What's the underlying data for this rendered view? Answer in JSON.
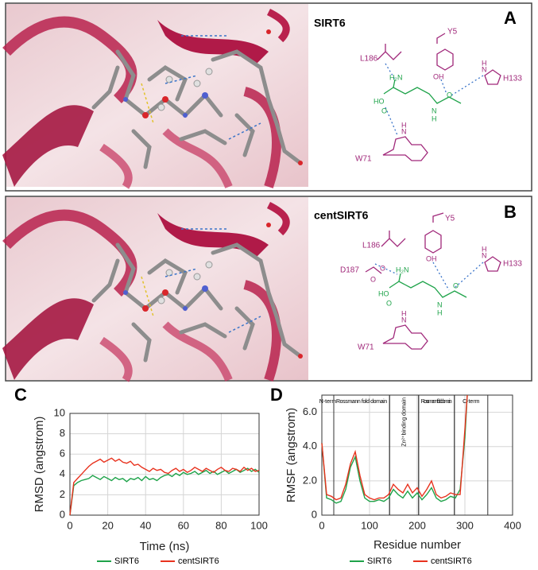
{
  "panels": {
    "a": {
      "label": "A",
      "title": "SIRT6",
      "residues": [
        "L186",
        "Y5",
        "H133",
        "W71"
      ],
      "atoms": [
        "HO",
        "H₂N",
        "O",
        "OH",
        "O",
        "N",
        "H",
        "N",
        "H",
        "N",
        "H"
      ]
    },
    "b": {
      "label": "B",
      "title": "centSIRT6",
      "residues": [
        "L186",
        "Y5",
        "D187",
        "H133",
        "W71"
      ],
      "atoms": [
        "O",
        "O",
        "HO",
        "H₂N",
        "O",
        "OH",
        "O",
        "N",
        "H",
        "N",
        "H",
        "N",
        "H"
      ]
    }
  },
  "chart_data": [
    {
      "type": "line",
      "panel_label": "C",
      "xlabel": "Time (ns)",
      "ylabel": "RMSD (angstrom)",
      "xlim": [
        0,
        100
      ],
      "xticks": [
        0,
        20,
        40,
        60,
        80,
        100
      ],
      "ylim": [
        0,
        10
      ],
      "yticks": [
        0,
        2,
        4,
        6,
        8,
        10
      ],
      "grid": true,
      "x": [
        0,
        2,
        4,
        6,
        8,
        10,
        12,
        14,
        16,
        18,
        20,
        22,
        24,
        26,
        28,
        30,
        32,
        34,
        36,
        38,
        40,
        42,
        44,
        46,
        48,
        50,
        52,
        54,
        56,
        58,
        60,
        62,
        64,
        66,
        68,
        70,
        72,
        74,
        76,
        78,
        80,
        82,
        84,
        86,
        88,
        90,
        92,
        94,
        96,
        98,
        100
      ],
      "series": [
        {
          "name": "SIRT6",
          "color": "#1fa34a",
          "values": [
            0,
            2.9,
            3.2,
            3.4,
            3.5,
            3.6,
            3.9,
            3.7,
            3.5,
            3.8,
            3.6,
            3.4,
            3.7,
            3.5,
            3.6,
            3.3,
            3.6,
            3.5,
            3.7,
            3.4,
            3.8,
            3.5,
            3.6,
            3.4,
            3.7,
            3.9,
            4.0,
            3.8,
            4.1,
            3.9,
            4.2,
            4.0,
            4.1,
            4.3,
            4.0,
            4.2,
            4.4,
            4.1,
            4.3,
            4.0,
            4.2,
            4.4,
            4.1,
            4.3,
            4.5,
            4.2,
            4.4,
            4.6,
            4.3,
            4.5,
            4.2
          ]
        },
        {
          "name": "centSIRT6",
          "color": "#e8321e",
          "values": [
            0,
            3.2,
            3.6,
            4.0,
            4.4,
            4.8,
            5.1,
            5.3,
            5.5,
            5.2,
            5.4,
            5.6,
            5.3,
            5.5,
            5.2,
            5.1,
            5.3,
            4.9,
            5.0,
            4.7,
            4.5,
            4.3,
            4.6,
            4.4,
            4.5,
            4.2,
            4.1,
            4.4,
            4.6,
            4.3,
            4.5,
            4.2,
            4.4,
            4.7,
            4.5,
            4.3,
            4.6,
            4.4,
            4.2,
            4.5,
            4.7,
            4.4,
            4.3,
            4.6,
            4.5,
            4.3,
            4.7,
            4.4,
            4.6,
            4.3,
            4.4
          ]
        }
      ]
    },
    {
      "type": "line",
      "panel_label": "D",
      "xlabel": "Residue number",
      "ylabel": "RMSF (angstrom)",
      "xlim": [
        0,
        400
      ],
      "xticks": [
        0,
        100,
        200,
        300,
        400
      ],
      "ylim": [
        0,
        7
      ],
      "yticks": [
        0,
        {
          "value": 2,
          "label": "2.0"
        },
        {
          "value": 4,
          "label": "4.0"
        },
        {
          "value": 6,
          "label": "6.0"
        }
      ],
      "grid": true,
      "regions": [
        {
          "label": "N-term",
          "start": 0,
          "end": 25
        },
        {
          "label": "Rossmann fold domain",
          "start": 25,
          "end": 142
        },
        {
          "label": "Zn²⁺binding domain",
          "start": 142,
          "end": 203
        },
        {
          "label": "Rossmann fold domain",
          "start": 203,
          "end": 278
        },
        {
          "label": "C-term",
          "start": 278,
          "end": 348
        }
      ],
      "x": [
        0,
        10,
        20,
        30,
        40,
        50,
        60,
        70,
        80,
        90,
        100,
        110,
        120,
        130,
        140,
        150,
        160,
        170,
        180,
        190,
        200,
        210,
        220,
        230,
        240,
        250,
        260,
        270,
        280,
        290,
        300,
        305
      ],
      "series": [
        {
          "name": "SIRT6",
          "color": "#1fa34a",
          "values": [
            4.2,
            1.0,
            0.9,
            0.7,
            0.8,
            1.5,
            2.8,
            3.4,
            2.0,
            1.0,
            0.8,
            0.8,
            0.9,
            0.8,
            1.0,
            1.5,
            1.2,
            1.0,
            1.4,
            1.0,
            1.3,
            0.9,
            1.2,
            1.6,
            1.0,
            0.8,
            0.9,
            1.1,
            1.0,
            1.5,
            4.5,
            7.0
          ]
        },
        {
          "name": "centSIRT6",
          "color": "#e8321e",
          "values": [
            4.2,
            1.2,
            1.1,
            0.9,
            1.0,
            1.8,
            3.0,
            3.7,
            2.3,
            1.2,
            1.0,
            0.9,
            1.0,
            1.0,
            1.2,
            1.8,
            1.5,
            1.3,
            1.8,
            1.3,
            1.6,
            1.1,
            1.5,
            2.0,
            1.2,
            1.0,
            1.1,
            1.3,
            1.2,
            1.2,
            5.0,
            7.0
          ]
        }
      ]
    }
  ]
}
